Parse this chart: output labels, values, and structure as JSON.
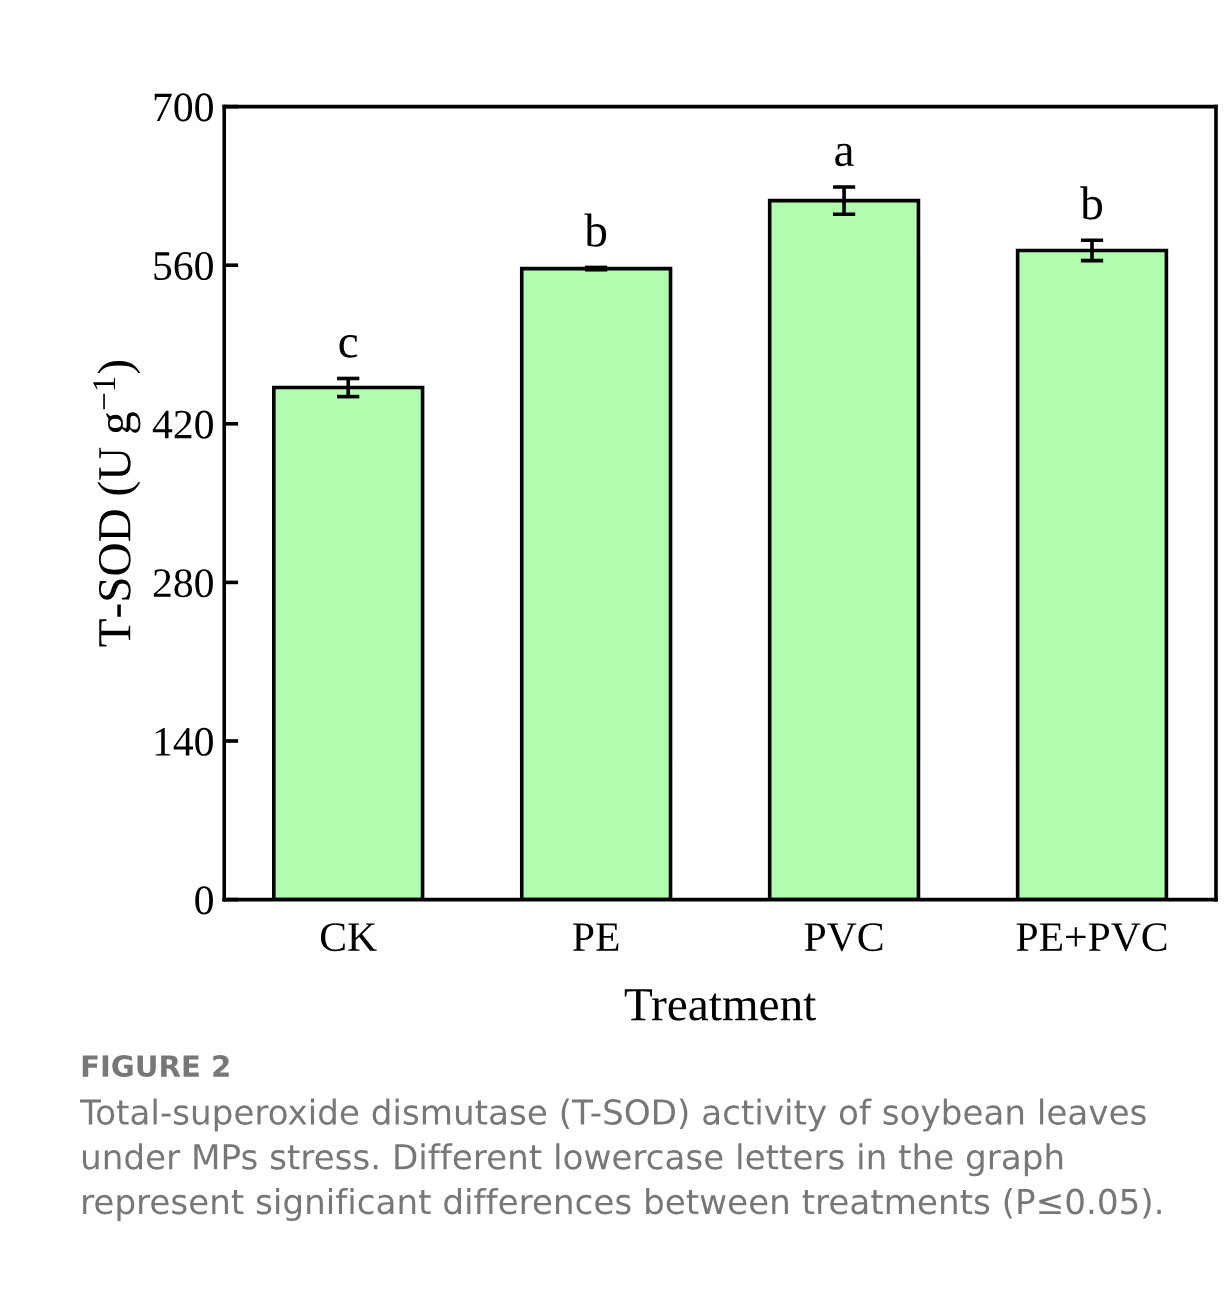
{
  "chart_data": {
    "type": "bar",
    "xlabel": "Treatment",
    "ylabel": "T-SOD (U g$^{−1}$)",
    "categories": [
      "CK",
      "PE",
      "PVC",
      "PE+PVC"
    ],
    "values": [
      452,
      557,
      617,
      573
    ],
    "errors": [
      8,
      1,
      12,
      9
    ],
    "color": "#b1fcaf",
    "ylim": [
      0,
      700
    ],
    "yticks": [
      0,
      140,
      280,
      420,
      560,
      700
    ],
    "grid": false,
    "value_labels": [
      "c",
      "b",
      "a",
      "b"
    ],
    "annotations": [
      "FIGURE 2",
      "Total-superoxide dismutase (T-SOD) activity of soybean leaves under MPs stress. Different lowercase letters in the graph represent significant differences between treatments (P≤0.05)."
    ]
  }
}
